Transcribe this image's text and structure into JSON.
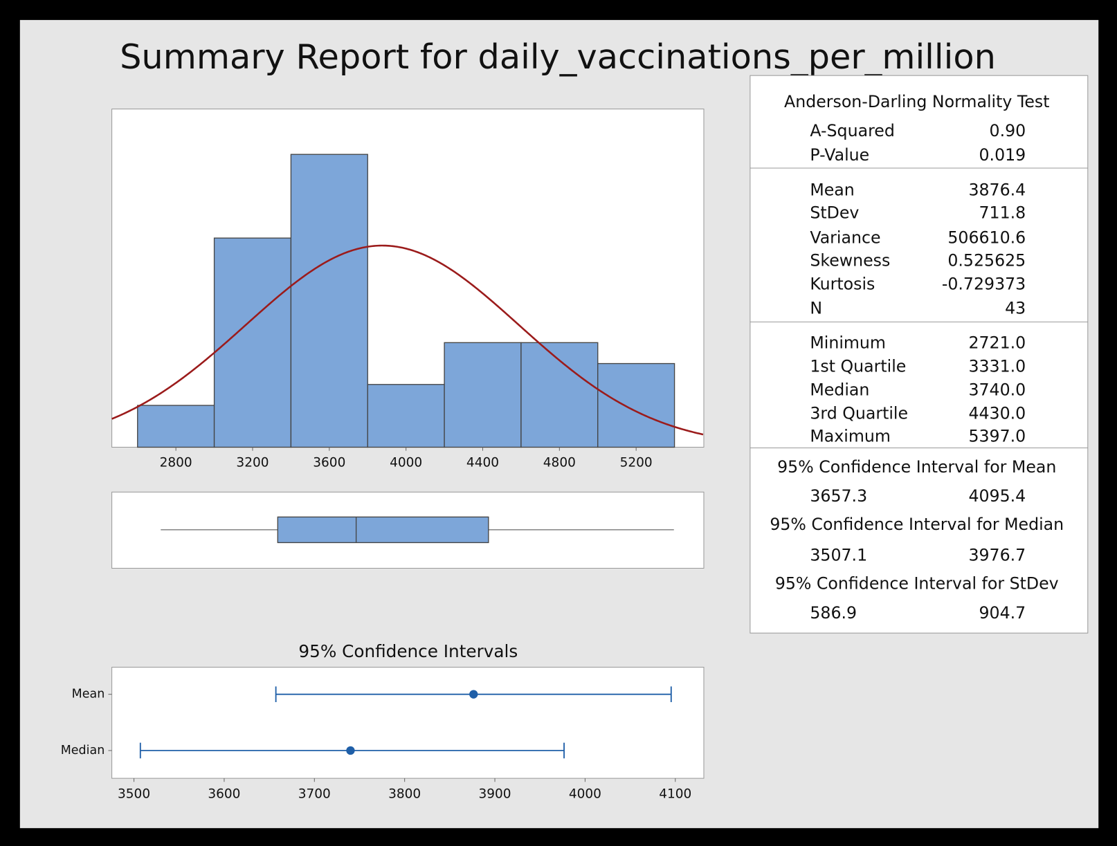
{
  "title": "Summary Report for daily_vaccinations_per_million",
  "chart_data": [
    {
      "type": "histogram",
      "bins": [
        2600,
        3000,
        3400,
        3800,
        4200,
        4600,
        5000,
        5400
      ],
      "counts": [
        2,
        10,
        14,
        3,
        5,
        5,
        4
      ],
      "color": "#7da6d9",
      "curve_color": "#9b1b1b",
      "xlim": [
        2466,
        5553
      ],
      "xticks": [
        2800,
        3200,
        3600,
        4000,
        4400,
        4800,
        5200
      ]
    },
    {
      "type": "interval",
      "title": "95% Confidence Intervals",
      "categories": [
        "Mean",
        "Median"
      ],
      "color": "#1f5fa8",
      "xlim": [
        3475.5,
        4131.6
      ],
      "xticks": [
        3500,
        3600,
        3700,
        3800,
        3900,
        4000,
        4100
      ]
    }
  ],
  "stats": {
    "sections": [
      {
        "title": "Anderson-Darling Normality Test",
        "rows": [
          [
            "A-Squared",
            "0.90"
          ],
          [
            "P-Value",
            "0.019"
          ]
        ]
      },
      {
        "rows": [
          [
            "Mean",
            "3876.4"
          ],
          [
            "StDev",
            "711.8"
          ],
          [
            "Variance",
            "506610.6"
          ],
          [
            "Skewness",
            "0.525625"
          ],
          [
            "Kurtosis",
            "-0.729373"
          ],
          [
            "N",
            "43"
          ]
        ]
      },
      {
        "rows": [
          [
            "Minimum",
            "2721.0"
          ],
          [
            "1st Quartile",
            "3331.0"
          ],
          [
            "Median",
            "3740.0"
          ],
          [
            "3rd Quartile",
            "4430.0"
          ],
          [
            "Maximum",
            "5397.0"
          ]
        ]
      }
    ],
    "intervals": [
      {
        "title": "95% Confidence Interval for Mean",
        "values": [
          "3657.3",
          "4095.4"
        ]
      },
      {
        "title": "95% Confidence Interval for Median",
        "values": [
          "3507.1",
          "3976.7"
        ]
      },
      {
        "title": "95% Confidence Interval for StDev",
        "values": [
          "586.9",
          "904.7"
        ]
      }
    ]
  }
}
